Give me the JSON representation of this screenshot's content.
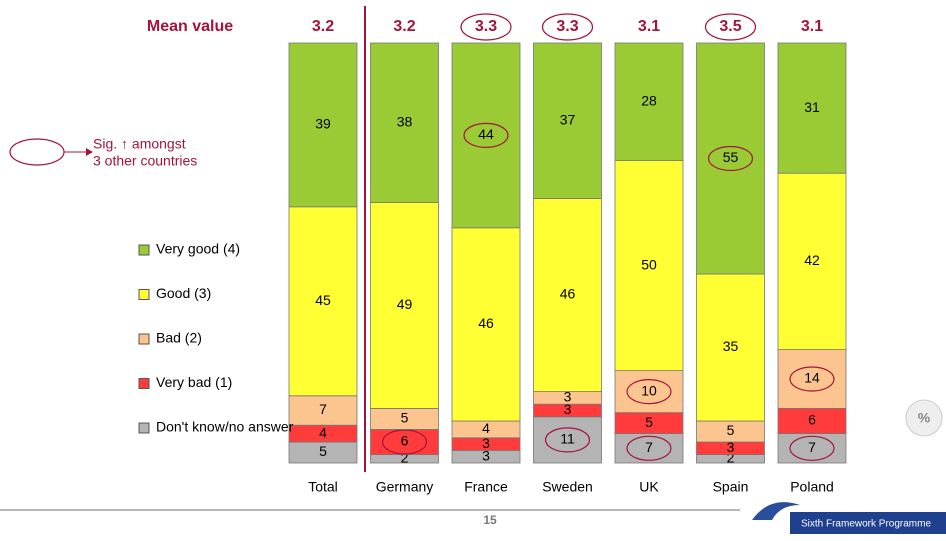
{
  "chart_data": {
    "type": "stacked_bar",
    "mean_label": "Mean value",
    "categories": [
      "Total",
      "Germany",
      "France",
      "Sweden",
      "UK",
      "Spain",
      "Poland"
    ],
    "means": [
      "3.2",
      "3.2",
      "3.3",
      "3.3",
      "3.1",
      "3.5",
      "3.1"
    ],
    "mean_sig": [
      false,
      false,
      true,
      true,
      false,
      true,
      false
    ],
    "series": [
      {
        "name": "Very good (4)",
        "color": "#9acb34",
        "values": [
          39,
          38,
          44,
          37,
          28,
          55,
          31
        ],
        "sig": [
          false,
          false,
          true,
          false,
          false,
          true,
          false
        ]
      },
      {
        "name": "Good (3)",
        "color": "#ffff33",
        "values": [
          45,
          49,
          46,
          46,
          50,
          35,
          42
        ],
        "sig": [
          false,
          false,
          false,
          false,
          false,
          false,
          false
        ]
      },
      {
        "name": "Bad (2)",
        "color": "#fcc58f",
        "values": [
          7,
          5,
          4,
          3,
          10,
          5,
          14
        ],
        "sig": [
          false,
          false,
          false,
          false,
          true,
          false,
          true
        ]
      },
      {
        "name": "Very bad (1)",
        "color": "#ff3b3b",
        "values": [
          4,
          6,
          3,
          3,
          5,
          3,
          6
        ],
        "sig": [
          false,
          true,
          false,
          false,
          false,
          false,
          false
        ]
      },
      {
        "name": "Don't know/no answer",
        "color": "#b4b4b4",
        "values": [
          5,
          2,
          3,
          11,
          7,
          2,
          7
        ],
        "sig": [
          false,
          false,
          false,
          true,
          true,
          false,
          true
        ]
      }
    ],
    "ylim": [
      0,
      100
    ],
    "annotation": [
      "Sig. ↑ amongst",
      "3 other countries"
    ],
    "page_number": "15",
    "unit_badge": "%",
    "logo_text": "Sixth Framework Programme"
  }
}
